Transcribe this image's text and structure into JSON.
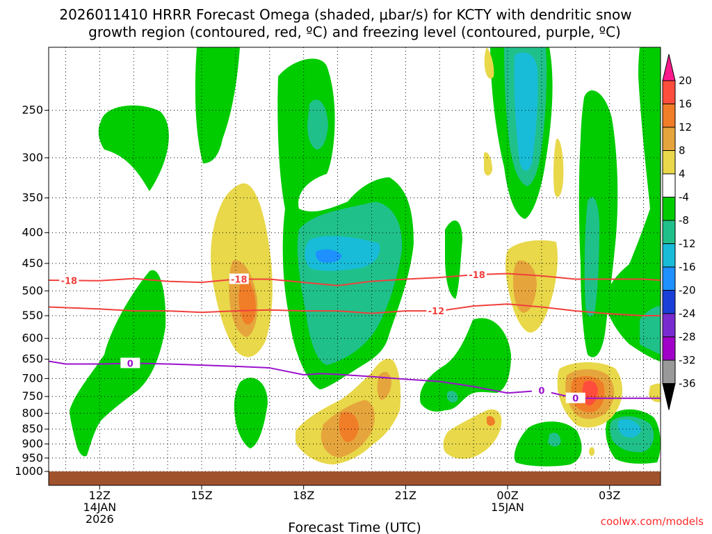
{
  "chart_data": {
    "type": "time-height",
    "title_line1": "2026011410 HRRR Forecast Omega (shaded, μbar/s) for KCTY with dendritic snow",
    "title_line2": "growth region (contoured, red, ºC) and freezing level (contoured, purple, ºC)",
    "xlabel": "Forecast Time (UTC)",
    "credit": "coolwx.com/models",
    "xlim": [
      10.5,
      28.5
    ],
    "x_ticks": [
      {
        "hour": 12,
        "lines": [
          "12Z",
          "14JAN",
          "2026"
        ]
      },
      {
        "hour": 15,
        "lines": [
          "15Z"
        ]
      },
      {
        "hour": 18,
        "lines": [
          "18Z"
        ]
      },
      {
        "hour": 21,
        "lines": [
          "21Z"
        ]
      },
      {
        "hour": 24,
        "lines": [
          "00Z",
          "15JAN"
        ]
      },
      {
        "hour": 27,
        "lines": [
          "03Z"
        ]
      }
    ],
    "y_ticks": [
      250,
      300,
      350,
      400,
      450,
      500,
      550,
      600,
      650,
      700,
      750,
      800,
      850,
      900,
      950,
      1000
    ],
    "y_tick_labels": [
      "250",
      "300",
      "350",
      "400",
      "450",
      "500",
      "550",
      "600",
      "650",
      "700",
      "750",
      "800",
      "850",
      "900",
      "950",
      "1000"
    ],
    "colorbar": {
      "labels": [
        "20",
        "16",
        "12",
        "8",
        "4",
        "-4",
        "-8",
        "-12",
        "-16",
        "-20",
        "-24",
        "-28",
        "-32",
        "-36"
      ],
      "colors": [
        "#ff1a8c",
        "#ff4d3d",
        "#f07d28",
        "#e6a53c",
        "#e8d84a",
        "#ffffff",
        "#00cc00",
        "#20c08a",
        "#18bcd8",
        "#1e90ff",
        "#1a3fd9",
        "#7a2bd0",
        "#a000c8",
        "#999999",
        "#000000"
      ]
    },
    "contours": [
      {
        "label": "-18",
        "color": "#f0403c",
        "x": [
          10.5,
          12,
          13,
          14,
          15,
          16,
          17,
          18,
          19,
          20,
          21,
          22,
          23,
          24,
          25,
          26,
          27,
          28,
          28.5
        ],
        "y": [
          480,
          481,
          477,
          482,
          484,
          478,
          478,
          484,
          490,
          482,
          478,
          475,
          470,
          468,
          472,
          478,
          478,
          478,
          480
        ],
        "labels_at": [
          11.1,
          16.1,
          23.1
        ]
      },
      {
        "label": "-12",
        "color": "#f0403c",
        "x": [
          10.5,
          12,
          13,
          14,
          15,
          16,
          17,
          18,
          19,
          20,
          21,
          22,
          23,
          24,
          25,
          26,
          27,
          28,
          28.5
        ],
        "y": [
          532,
          536,
          540,
          540,
          543,
          540,
          538,
          540,
          540,
          545,
          540,
          540,
          530,
          526,
          532,
          540,
          546,
          550,
          550
        ],
        "labels_at": [
          21.9
        ]
      },
      {
        "label": "0",
        "color": "#9a11cc",
        "x": [
          10.5,
          11,
          12,
          13,
          14,
          15,
          16,
          17,
          18,
          18.5,
          19,
          20,
          21,
          22,
          23,
          24,
          25,
          26,
          27,
          28,
          28.5
        ],
        "y": [
          655,
          662,
          662,
          660,
          662,
          665,
          668,
          672,
          690,
          687,
          689,
          695,
          702,
          708,
          722,
          740,
          733,
          755,
          755,
          755,
          755
        ],
        "labels_at": [
          12.9,
          25.0,
          26.0
        ]
      }
    ],
    "omega_shading": "blob-approximation of shaded omega field; ranges in colorbar"
  }
}
